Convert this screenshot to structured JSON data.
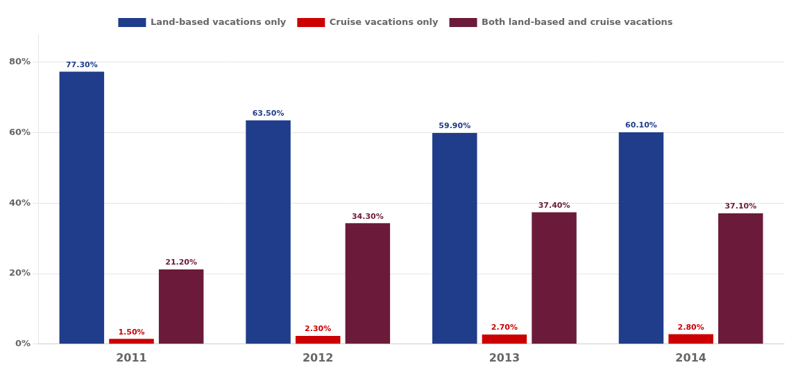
{
  "chart_data": {
    "type": "bar",
    "categories": [
      "2011",
      "2012",
      "2013",
      "2014"
    ],
    "series": [
      {
        "name": "Land-based vacations only",
        "color": "#1F3D8B",
        "values": [
          77.3,
          63.5,
          59.9,
          60.1
        ],
        "value_labels": [
          "77.30%",
          "63.50%",
          "59.90%",
          "60.10%"
        ]
      },
      {
        "name": "Cruise vacations only",
        "color": "#CC0000",
        "values": [
          1.5,
          2.3,
          2.7,
          2.8
        ],
        "value_labels": [
          "1.50%",
          "2.30%",
          "2.70%",
          "2.80%"
        ]
      },
      {
        "name": "Both land-based and cruise vacations",
        "color": "#6B1A3A",
        "values": [
          21.2,
          34.3,
          37.4,
          37.1
        ],
        "value_labels": [
          "21.20%",
          "34.30%",
          "37.40%",
          "37.10%"
        ]
      }
    ],
    "ylim": [
      0,
      88
    ],
    "yticks": [
      {
        "value": 0,
        "label": "0%"
      },
      {
        "value": 20,
        "label": "20%"
      },
      {
        "value": 40,
        "label": "40%"
      },
      {
        "value": 60,
        "label": "60%"
      },
      {
        "value": 80,
        "label": "80%"
      }
    ],
    "grid": true,
    "legend": "top",
    "data_labels": true
  }
}
